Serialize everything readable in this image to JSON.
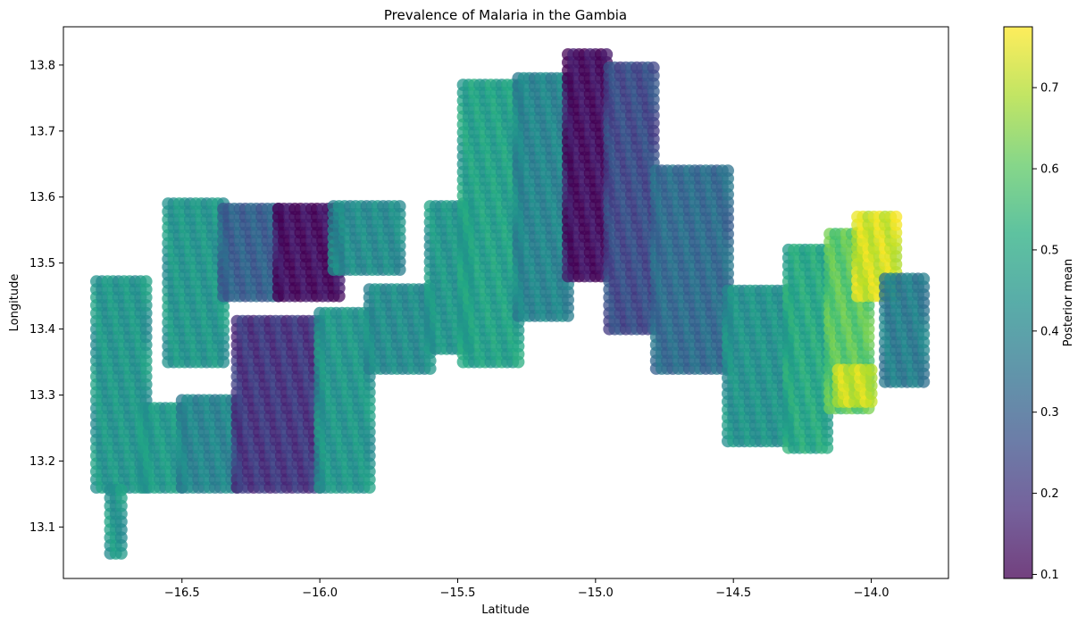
{
  "chart_data": {
    "type": "scatter",
    "title": "Prevalence of Malaria in the Gambia",
    "xlabel": "Latitude",
    "ylabel": "Longitude",
    "xlim": [
      -16.93,
      -13.72
    ],
    "ylim": [
      13.022,
      13.858
    ],
    "xticks": [
      -16.5,
      -16.0,
      -15.5,
      -15.0,
      -14.5,
      -14.0
    ],
    "xtick_labels": [
      "−16.5",
      "−16.0",
      "−15.5",
      "−15.0",
      "−14.5",
      "−14.0"
    ],
    "yticks": [
      13.1,
      13.2,
      13.3,
      13.4,
      13.5,
      13.6,
      13.7,
      13.8
    ],
    "ytick_labels": [
      "13.1",
      "13.2",
      "13.3",
      "13.4",
      "13.5",
      "13.6",
      "13.7",
      "13.8"
    ],
    "grid": false,
    "colormap": "viridis",
    "marker_alpha": 0.75,
    "colorbar": {
      "label": "Posterior mean",
      "range": [
        0.095,
        0.775
      ],
      "ticks": [
        0.1,
        0.2,
        0.3,
        0.4,
        0.5,
        0.6,
        0.7
      ],
      "tick_labels": [
        "0.1",
        "0.2",
        "0.3",
        "0.4",
        "0.5",
        "0.6",
        "0.7"
      ]
    },
    "regions": [
      {
        "x": [
          -16.81,
          -16.62
        ],
        "y": [
          13.16,
          13.48
        ],
        "value": 0.45
      },
      {
        "x": [
          -16.76,
          -16.72
        ],
        "y": [
          13.06,
          13.16
        ],
        "value": 0.45
      },
      {
        "x": [
          -16.64,
          -16.5
        ],
        "y": [
          13.16,
          13.28
        ],
        "value": 0.46
      },
      {
        "x": [
          -16.5,
          -16.3
        ],
        "y": [
          13.16,
          13.3
        ],
        "value": 0.4
      },
      {
        "x": [
          -16.3,
          -16.0
        ],
        "y": [
          13.16,
          13.42
        ],
        "value": 0.2
      },
      {
        "x": [
          -16.0,
          -15.82
        ],
        "y": [
          13.16,
          13.43
        ],
        "value": 0.45
      },
      {
        "x": [
          -16.55,
          -16.35
        ],
        "y": [
          13.35,
          13.59
        ],
        "value": 0.45
      },
      {
        "x": [
          -16.35,
          -16.15
        ],
        "y": [
          13.45,
          13.59
        ],
        "value": 0.3
      },
      {
        "x": [
          -16.15,
          -15.92
        ],
        "y": [
          13.45,
          13.59
        ],
        "value": 0.12
      },
      {
        "x": [
          -15.95,
          -15.7
        ],
        "y": [
          13.49,
          13.59
        ],
        "value": 0.42
      },
      {
        "x": [
          -15.82,
          -15.6
        ],
        "y": [
          13.34,
          13.46
        ],
        "value": 0.42
      },
      {
        "x": [
          -15.6,
          -15.45
        ],
        "y": [
          13.37,
          13.59
        ],
        "value": 0.45
      },
      {
        "x": [
          -15.48,
          -15.28
        ],
        "y": [
          13.35,
          13.77
        ],
        "value": 0.48
      },
      {
        "x": [
          -15.28,
          -15.1
        ],
        "y": [
          13.42,
          13.78
        ],
        "value": 0.4
      },
      {
        "x": [
          -15.1,
          -14.95
        ],
        "y": [
          13.48,
          13.82
        ],
        "value": 0.12
      },
      {
        "x": [
          -14.95,
          -14.78
        ],
        "y": [
          13.4,
          13.8
        ],
        "value": 0.25
      },
      {
        "x": [
          -14.78,
          -14.52
        ],
        "y": [
          13.34,
          13.65
        ],
        "value": 0.33
      },
      {
        "x": [
          -14.52,
          -14.3
        ],
        "y": [
          13.23,
          13.46
        ],
        "value": 0.44
      },
      {
        "x": [
          -14.3,
          -14.15
        ],
        "y": [
          13.22,
          13.52
        ],
        "value": 0.5
      },
      {
        "x": [
          -14.15,
          -14.0
        ],
        "y": [
          13.28,
          13.55
        ],
        "value": 0.6
      },
      {
        "x": [
          -14.05,
          -13.9
        ],
        "y": [
          13.45,
          13.57
        ],
        "value": 0.73
      },
      {
        "x": [
          -14.12,
          -14.0
        ],
        "y": [
          13.29,
          13.34
        ],
        "value": 0.72
      },
      {
        "x": [
          -13.95,
          -13.8
        ],
        "y": [
          13.32,
          13.48
        ],
        "value": 0.38
      }
    ]
  }
}
